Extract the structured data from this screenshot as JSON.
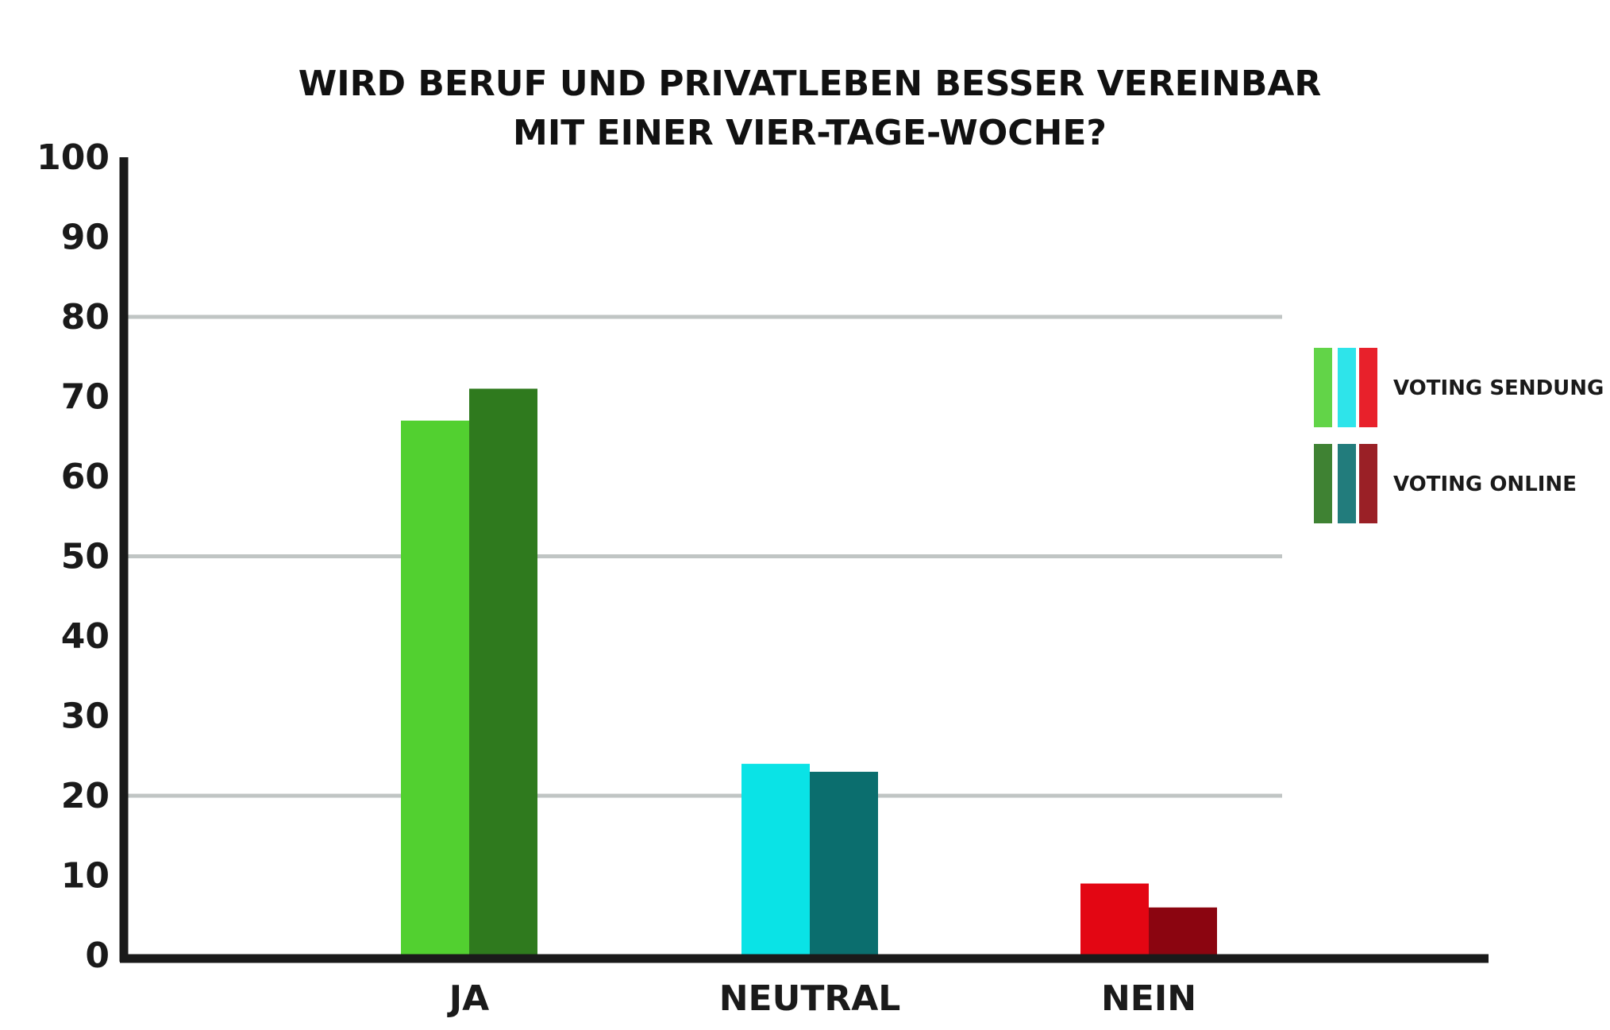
{
  "chart_data": {
    "type": "bar",
    "title": [
      "WIRD BERUF UND PRIVATLEBEN BESSER VEREINBAR",
      "MIT EINER VIER-TAGE-WOCHE?"
    ],
    "categories": [
      "JA",
      "NEUTRAL",
      "NEIN"
    ],
    "series": [
      {
        "name": "VOTING SENDUNG",
        "values": [
          67,
          24,
          9
        ],
        "colors": [
          "#52d030",
          "#0ae3e6",
          "#e30613"
        ],
        "legend_colors": [
          "#62d448",
          "#2ee4ea",
          "#e8212b"
        ]
      },
      {
        "name": "VOTING ONLINE",
        "values": [
          71,
          23,
          6
        ],
        "colors": [
          "#2f7a1e",
          "#0b6e6e",
          "#8b0510"
        ],
        "legend_colors": [
          "#3f8233",
          "#227c7c",
          "#9a2026"
        ]
      }
    ],
    "ylim": [
      0,
      100
    ],
    "yticks": [
      0,
      10,
      20,
      30,
      40,
      50,
      60,
      70,
      80,
      90,
      100
    ],
    "gridlines": [
      20,
      50,
      80
    ],
    "grid_color": "#c0c5c4",
    "axis_color": "#1a1a1a",
    "xlabel": "",
    "ylabel": "",
    "legend_position": "right"
  }
}
